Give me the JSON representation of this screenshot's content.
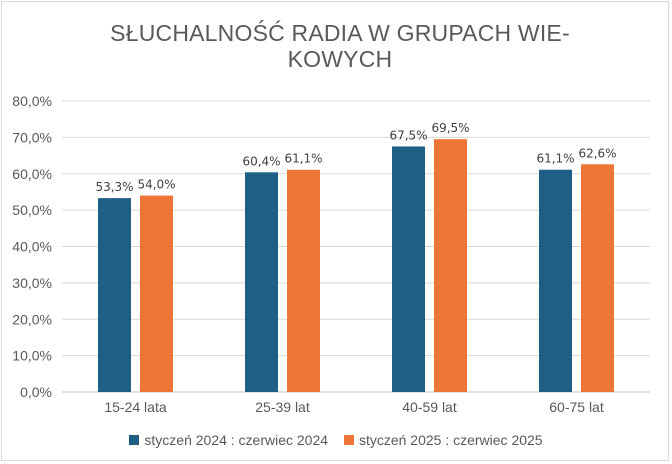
{
  "chart_data": {
    "type": "bar",
    "title_lines": [
      "SŁUCHALNOŚĆ RADIA W GRUPACH WIE-",
      "KOWYCH"
    ],
    "categories": [
      "15-24 lata",
      "25-39 lat",
      "40-59 lat",
      "60-75 lat"
    ],
    "series": [
      {
        "name": "styczeń 2024 : czerwiec 2024",
        "color": "#1f5f86",
        "values": [
          53.3,
          60.4,
          67.5,
          61.1
        ],
        "labels": [
          "53,3%",
          "60,4%",
          "67,5%",
          "61,1%"
        ]
      },
      {
        "name": "styczeń 2025 : czerwiec 2025",
        "color": "#ed7636",
        "values": [
          54.0,
          61.1,
          69.5,
          62.6
        ],
        "labels": [
          "54,0%",
          "61,1%",
          "69,5%",
          "62,6%"
        ]
      }
    ],
    "ylim": [
      0,
      80
    ],
    "yticks": [
      "0,0%",
      "10,0%",
      "20,0%",
      "30,0%",
      "40,0%",
      "50,0%",
      "60,0%",
      "70,0%",
      "80,0%"
    ],
    "grid": true,
    "legend_position": "bottom"
  }
}
